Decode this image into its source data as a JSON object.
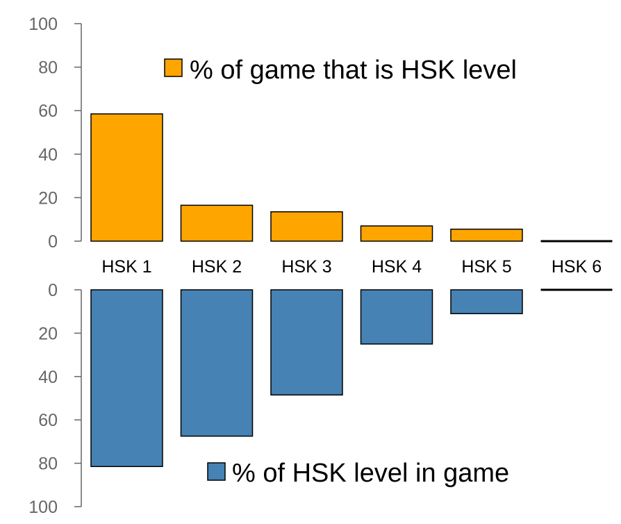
{
  "chart_data": {
    "type": "bar",
    "categories": [
      "HSK 1",
      "HSK 2",
      "HSK 3",
      "HSK 4",
      "HSK 5",
      "HSK 6"
    ],
    "series": [
      {
        "name": "% of game that is HSK level",
        "values": [
          58.5,
          16.5,
          13.5,
          7,
          5.5,
          0
        ],
        "color": "#FFA500",
        "direction": "up"
      },
      {
        "name": "% of HSK level in game",
        "values": [
          81.5,
          67.5,
          48.5,
          25,
          11,
          0
        ],
        "color": "#4682B4",
        "direction": "down"
      }
    ],
    "top_axis": {
      "ylim": [
        0,
        100
      ],
      "ticks": [
        "0",
        "20",
        "40",
        "60",
        "80",
        "100"
      ]
    },
    "bottom_axis": {
      "ylim": [
        0,
        100
      ],
      "ticks": [
        "0",
        "20",
        "40",
        "60",
        "80",
        "100"
      ]
    },
    "grid": false,
    "legend_placement": [
      "top-center",
      "bottom-center"
    ]
  }
}
